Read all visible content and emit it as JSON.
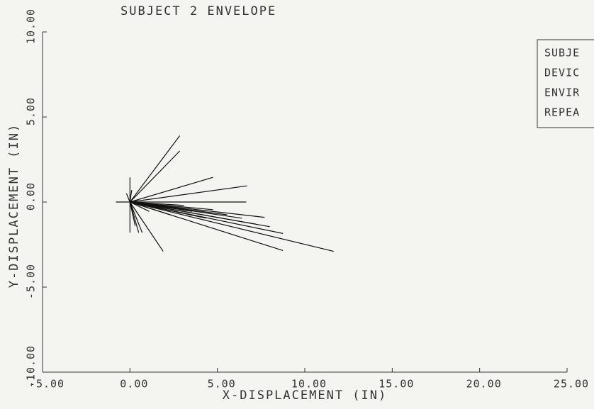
{
  "chart_data": {
    "type": "segments",
    "title": "SUBJECT 2 ENVELOPE",
    "xlabel": "X-DISPLACEMENT (IN)",
    "ylabel": "Y-DISPLACEMENT (IN)",
    "legend_text": [
      "SUBJE",
      "DEVIC",
      "ENVIR",
      "REPEA"
    ],
    "color": "#111111",
    "xlim": [
      -5,
      25
    ],
    "ylim": [
      -10,
      10
    ],
    "xticks": [
      {
        "value": -5,
        "label": "-5.00"
      },
      {
        "value": 0,
        "label": "0.00"
      },
      {
        "value": 5,
        "label": "5.00"
      },
      {
        "value": 10,
        "label": "10.00"
      },
      {
        "value": 15,
        "label": "15.00"
      },
      {
        "value": 20,
        "label": "20.00"
      },
      {
        "value": 25,
        "label": "25.00"
      }
    ],
    "yticks": [
      {
        "value": -10,
        "label": "-10.00"
      },
      {
        "value": -5,
        "label": "-5.00"
      },
      {
        "value": 0,
        "label": "0.00"
      },
      {
        "value": 5,
        "label": "5.00"
      },
      {
        "value": 10,
        "label": "10.00"
      }
    ],
    "segments": [
      {
        "x": [
          0,
          2.85
        ],
        "y": [
          0,
          3.9
        ]
      },
      {
        "x": [
          0,
          2.85
        ],
        "y": [
          0,
          3.0
        ]
      },
      {
        "x": [
          0,
          4.75
        ],
        "y": [
          0,
          1.45
        ]
      },
      {
        "x": [
          0,
          6.7
        ],
        "y": [
          0,
          0.95
        ]
      },
      {
        "x": [
          0,
          6.65
        ],
        "y": [
          0,
          0
        ]
      },
      {
        "x": [
          0,
          7.7
        ],
        "y": [
          0,
          -0.9
        ]
      },
      {
        "x": [
          0,
          8.75
        ],
        "y": [
          0,
          -1.85
        ]
      },
      {
        "x": [
          0,
          8.75
        ],
        "y": [
          0,
          -2.85
        ]
      },
      {
        "x": [
          0,
          11.65
        ],
        "y": [
          0,
          -2.9
        ]
      },
      {
        "x": [
          0,
          1.9
        ],
        "y": [
          0,
          -2.9
        ]
      },
      {
        "x": [
          0,
          0
        ],
        "y": [
          0,
          -1.8
        ]
      },
      {
        "x": [
          0,
          0
        ],
        "y": [
          0,
          1.45
        ]
      },
      {
        "x": [
          0,
          -0.8
        ],
        "y": [
          0,
          0
        ]
      },
      {
        "x": [
          0,
          0.5
        ],
        "y": [
          0,
          -1.8
        ]
      },
      {
        "x": [
          0,
          0.7
        ],
        "y": [
          0,
          -1.8
        ]
      },
      {
        "x": [
          0,
          0.3
        ],
        "y": [
          0,
          -1.4
        ]
      },
      {
        "x": [
          0,
          3.55
        ],
        "y": [
          0,
          -0.55
        ]
      },
      {
        "x": [
          0,
          4.75
        ],
        "y": [
          0,
          -0.45
        ]
      },
      {
        "x": [
          0,
          5.55
        ],
        "y": [
          0,
          -0.75
        ]
      },
      {
        "x": [
          0,
          6.4
        ],
        "y": [
          0,
          -0.95
        ]
      },
      {
        "x": [
          0,
          7.2
        ],
        "y": [
          0,
          -1.3
        ]
      },
      {
        "x": [
          0,
          8.0
        ],
        "y": [
          0,
          -1.45
        ]
      },
      {
        "x": [
          0,
          4.35
        ],
        "y": [
          0,
          -0.95
        ]
      },
      {
        "x": [
          0,
          2.3
        ],
        "y": [
          0,
          -0.75
        ]
      },
      {
        "x": [
          0,
          1.1
        ],
        "y": [
          0,
          -0.55
        ]
      },
      {
        "x": [
          0,
          3.1
        ],
        "y": [
          0,
          -0.2
        ]
      },
      {
        "x": [
          0,
          0.1
        ],
        "y": [
          0,
          0.7
        ]
      },
      {
        "x": [
          0,
          -0.2
        ],
        "y": [
          0,
          0.5
        ]
      }
    ]
  }
}
